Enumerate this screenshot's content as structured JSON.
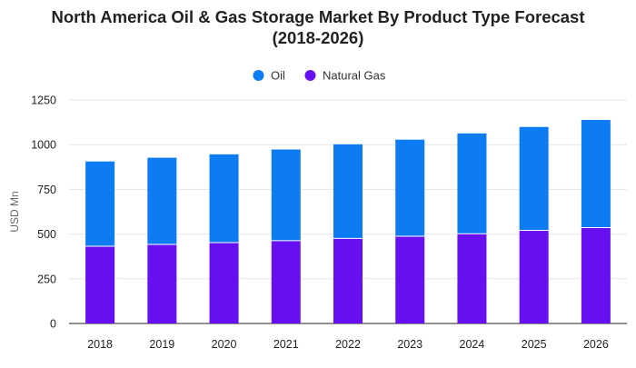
{
  "chart_data": {
    "type": "bar",
    "stacked": true,
    "title_line1": "North America Oil & Gas Storage Market By Product Type Forecast",
    "title_line2": "(2018-2026)",
    "xlabel": "",
    "ylabel": "USD Mn",
    "ylim": [
      0,
      1250
    ],
    "yticks": [
      0,
      250,
      500,
      750,
      1000,
      1250
    ],
    "grid": true,
    "legend_position": "top-center",
    "categories": [
      "2018",
      "2019",
      "2020",
      "2021",
      "2022",
      "2023",
      "2024",
      "2025",
      "2026"
    ],
    "series": [
      {
        "name": "Natural Gas",
        "color": "#6610f2",
        "values": [
          432,
          442,
          452,
          463,
          476,
          488,
          502,
          521,
          536
        ]
      },
      {
        "name": "Oil",
        "color": "#0d7cf2",
        "values": [
          474,
          485,
          494,
          510,
          526,
          540,
          561,
          578,
          602
        ]
      }
    ],
    "legend_order": [
      "Oil",
      "Natural Gas"
    ]
  }
}
